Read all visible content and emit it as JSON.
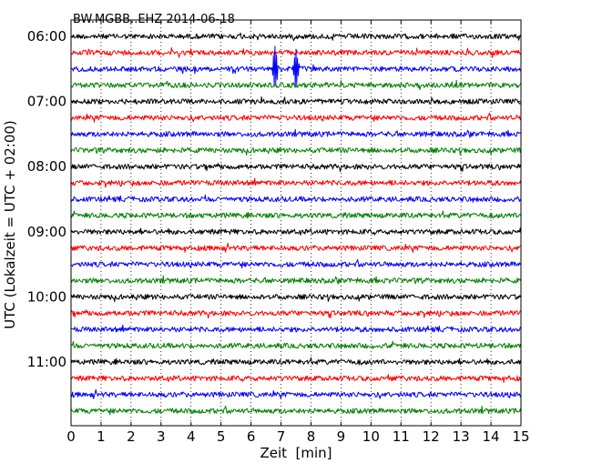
{
  "chart_data": {
    "type": "line",
    "title": "BW.MGBB..EHZ 2014-06-18",
    "xlabel": "Zeit  [min]",
    "ylabel": "UTC (Lokalzeit = UTC + 02:00)",
    "xlim": [
      0,
      15
    ],
    "x_ticks": [
      0,
      1,
      2,
      3,
      4,
      5,
      6,
      7,
      8,
      9,
      10,
      11,
      12,
      13,
      14,
      15
    ],
    "y_tick_labels": [
      "06:00",
      "07:00",
      "08:00",
      "09:00",
      "10:00",
      "11:00"
    ],
    "grid": "vertical dotted",
    "interval_minutes": 15,
    "start_time": "06:00",
    "traces": [
      {
        "start": "06:00",
        "color": "#000000"
      },
      {
        "start": "06:15",
        "color": "#ff0000"
      },
      {
        "start": "06:30",
        "color": "#0000ff",
        "events": [
          {
            "minute": 6.8,
            "amplitude": "large"
          },
          {
            "minute": 7.5,
            "amplitude": "large"
          }
        ]
      },
      {
        "start": "06:45",
        "color": "#008000"
      },
      {
        "start": "07:00",
        "color": "#000000"
      },
      {
        "start": "07:15",
        "color": "#ff0000"
      },
      {
        "start": "07:30",
        "color": "#0000ff"
      },
      {
        "start": "07:45",
        "color": "#008000"
      },
      {
        "start": "08:00",
        "color": "#000000"
      },
      {
        "start": "08:15",
        "color": "#ff0000"
      },
      {
        "start": "08:30",
        "color": "#0000ff"
      },
      {
        "start": "08:45",
        "color": "#008000"
      },
      {
        "start": "09:00",
        "color": "#000000"
      },
      {
        "start": "09:15",
        "color": "#ff0000"
      },
      {
        "start": "09:30",
        "color": "#0000ff"
      },
      {
        "start": "09:45",
        "color": "#008000"
      },
      {
        "start": "10:00",
        "color": "#000000"
      },
      {
        "start": "10:15",
        "color": "#ff0000"
      },
      {
        "start": "10:30",
        "color": "#0000ff"
      },
      {
        "start": "10:45",
        "color": "#008000"
      },
      {
        "start": "11:00",
        "color": "#000000"
      },
      {
        "start": "11:15",
        "color": "#ff0000"
      },
      {
        "start": "11:30",
        "color": "#0000ff"
      },
      {
        "start": "11:45",
        "color": "#008000"
      }
    ]
  }
}
